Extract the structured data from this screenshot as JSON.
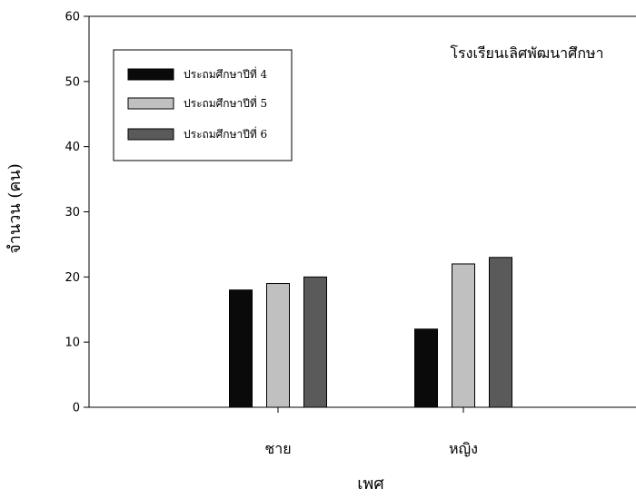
{
  "chart_data": {
    "type": "bar",
    "categories": [
      "ชาย",
      "หญิง"
    ],
    "series": [
      {
        "name": "ประถมศึกษาปีที่ 4",
        "values": [
          18,
          12
        ],
        "color": "#0a0a0a"
      },
      {
        "name": "ประถมศึกษาปีที่ 5",
        "values": [
          19,
          22
        ],
        "color": "#c0c0c0"
      },
      {
        "name": "ประถมศึกษาปีที่ 6",
        "values": [
          20,
          23
        ],
        "color": "#5a5a5a"
      }
    ],
    "xlabel": "เพศ",
    "ylabel": "จำนวน (คน)",
    "ylim": [
      0,
      60
    ],
    "yticks": [
      0,
      10,
      20,
      30,
      40,
      50,
      60
    ],
    "annotation": "โรงเรียนเลิศพัฒนาศึกษา",
    "legend_position": "top-left",
    "grid": false
  }
}
